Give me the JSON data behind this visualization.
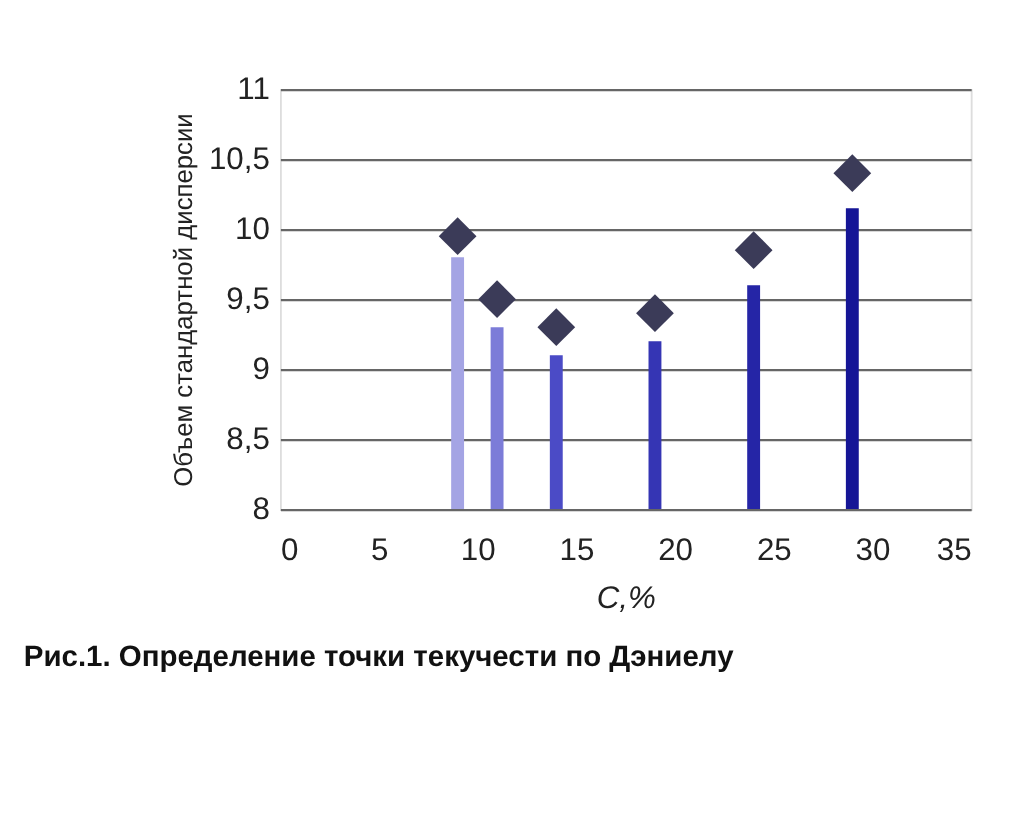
{
  "chart_data": {
    "type": "bar",
    "title": "Рис.1. Определение точки текучести по Дэниелу",
    "xlabel": "C,%",
    "ylabel": "Объем стандартной дисперсии",
    "x": [
      9,
      11,
      14,
      19,
      24,
      29
    ],
    "series": [
      {
        "colors": [
          "#a4a4e4",
          "#7c7cd8",
          "#4b4bc6",
          "#3535b4",
          "#2525a6",
          "#151596"
        ],
        "values": [
          9.8,
          9.3,
          9.1,
          9.2,
          9.6,
          10.15
        ]
      },
      {
        "type": "scatter",
        "color": "#3b3b58",
        "marker": "diamond",
        "values": [
          9.95,
          9.5,
          9.3,
          9.4,
          9.85,
          10.4
        ]
      }
    ],
    "xlim": [
      0,
      35
    ],
    "xticks": [
      0,
      5,
      10,
      15,
      20,
      25,
      30,
      35
    ],
    "ylim": [
      8,
      11
    ],
    "yticks": [
      8,
      {
        "value": 8.5,
        "label": "8,5"
      },
      9,
      {
        "value": 9.5,
        "label": "9,5"
      },
      10,
      {
        "value": 10.5,
        "label": "10,5"
      },
      11
    ],
    "grid": "y"
  }
}
